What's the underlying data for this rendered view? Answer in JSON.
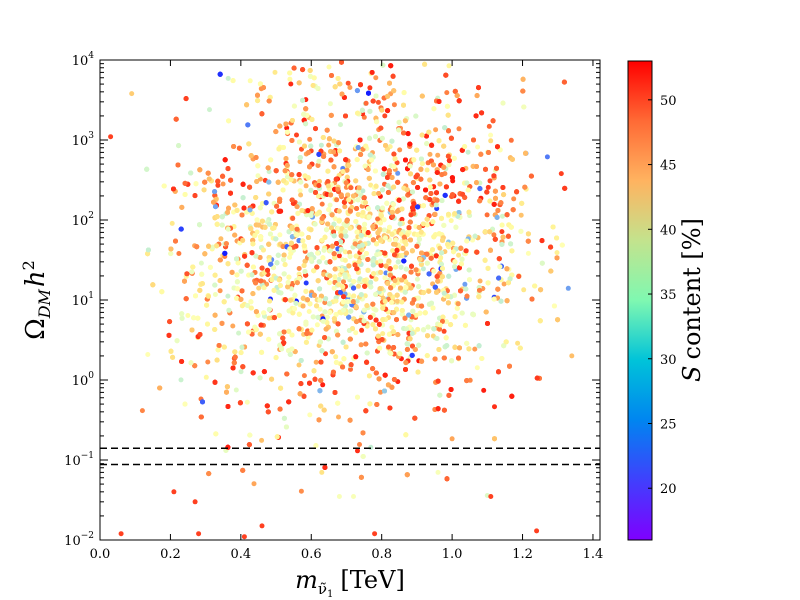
{
  "chart_data": {
    "type": "scatter",
    "title": "",
    "xlabel": {
      "base": "m",
      "subscript": "ν̃",
      "subsub": "1",
      "unit": "[TeV]"
    },
    "ylabel": {
      "symbol": "Ω",
      "subscript": "DM",
      "var": "h",
      "power": "2"
    },
    "xlim": [
      0.0,
      1.42
    ],
    "ylim": [
      0.01,
      10000
    ],
    "yscale": "log",
    "xticks": [
      0.0,
      0.2,
      0.4,
      0.6,
      0.8,
      1.0,
      1.2,
      1.4
    ],
    "xtick_labels": [
      "0.0",
      "0.2",
      "0.4",
      "0.6",
      "0.8",
      "1.0",
      "1.2",
      "1.4"
    ],
    "yticks": [
      0.01,
      0.1,
      1,
      10,
      100,
      1000,
      10000
    ],
    "ytick_labels": [
      {
        "base": "10",
        "exp": "−2"
      },
      {
        "base": "10",
        "exp": "−1"
      },
      {
        "base": "10",
        "exp": "0"
      },
      {
        "base": "10",
        "exp": "1"
      },
      {
        "base": "10",
        "exp": "2"
      },
      {
        "base": "10",
        "exp": "3"
      },
      {
        "base": "10",
        "exp": "4"
      }
    ],
    "reference_lines": [
      {
        "y": 0.14,
        "style": "dashed"
      },
      {
        "y": 0.088,
        "style": "dashed"
      }
    ],
    "colorbar": {
      "label_var": "S",
      "label_text": "content [%]",
      "min": 16,
      "max": 53,
      "ticks": [
        20,
        25,
        30,
        35,
        40,
        45,
        50
      ],
      "tick_labels": [
        "20",
        "25",
        "30",
        "35",
        "40",
        "45",
        "50"
      ],
      "colormap": "rainbow"
    },
    "point_count": 6000,
    "points": [
      {
        "x": 0.28,
        "y": 0.012,
        "c": 50
      },
      {
        "x": 0.06,
        "y": 0.012,
        "c": 50
      },
      {
        "x": 0.27,
        "y": 0.03,
        "c": 50
      },
      {
        "x": 0.21,
        "y": 0.04,
        "c": 50
      },
      {
        "x": 0.41,
        "y": 0.011,
        "c": 50
      },
      {
        "x": 0.46,
        "y": 0.015,
        "c": 50
      },
      {
        "x": 0.78,
        "y": 0.012,
        "c": 50
      },
      {
        "x": 1.24,
        "y": 0.013,
        "c": 50
      },
      {
        "x": 0.68,
        "y": 0.035,
        "c": 34
      },
      {
        "x": 0.72,
        "y": 0.035,
        "c": 34
      },
      {
        "x": 1.1,
        "y": 0.036,
        "c": 32
      },
      {
        "x": 1.11,
        "y": 0.035,
        "c": 50
      },
      {
        "x": 0.63,
        "y": 0.07,
        "c": 40
      },
      {
        "x": 0.96,
        "y": 0.07,
        "c": 34
      },
      {
        "x": 1.33,
        "y": 14,
        "c": 24
      },
      {
        "x": 1.34,
        "y": 2,
        "c": 43
      },
      {
        "x": 1.31,
        "y": 380,
        "c": 50
      },
      {
        "x": 0.03,
        "y": 1100,
        "c": 50
      },
      {
        "x": 0.09,
        "y": 3800,
        "c": 42
      }
    ]
  }
}
